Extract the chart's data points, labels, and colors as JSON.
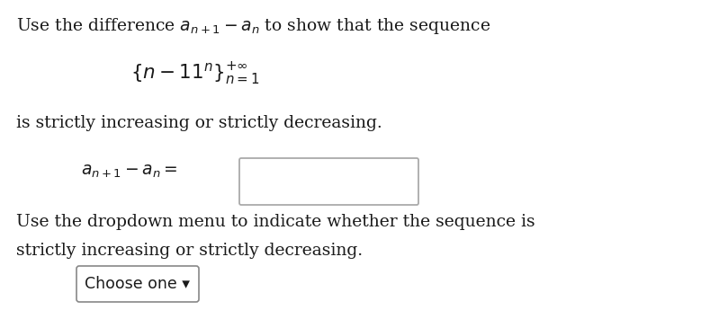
{
  "bg_color": "#ffffff",
  "text_color": "#1a1a1a",
  "box_color": "#aaaaaa",
  "dropdown_box_color": "#888888",
  "figsize": [
    7.99,
    3.55
  ],
  "dpi": 100,
  "line1": "Use the difference $a_{n+1} - a_n$ to show that the sequence",
  "line2": "$\\{n - 11^n\\}_{n=1}^{+\\infty}$",
  "line3": "is strictly increasing or strictly decreasing.",
  "line4_label": "$a_{n+1} - a_n =$",
  "line5a": "Use the dropdown menu to indicate whether the sequence is",
  "line5b": "strictly increasing or strictly decreasing.",
  "dropdown_text": "Choose one ▾",
  "font_size_body": 13.5,
  "font_size_math_inline": 13.5,
  "font_size_display": 15.5,
  "font_size_dropdown": 12.5
}
